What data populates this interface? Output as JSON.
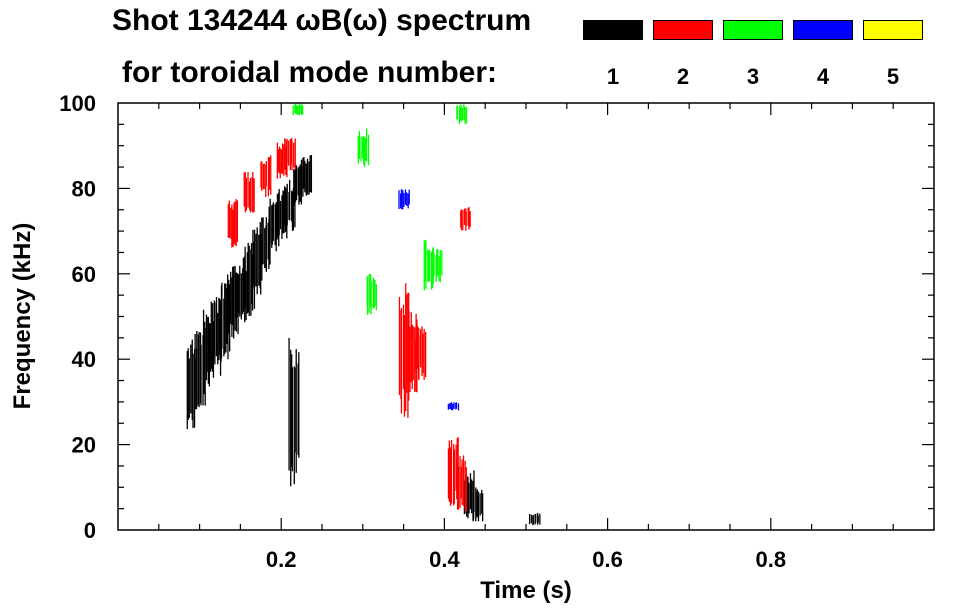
{
  "title_line1": "Shot 134244 ωB(ω) spectrum",
  "title_line2": "for toroidal mode number:",
  "legend": [
    {
      "label": "1",
      "color": "#000000"
    },
    {
      "label": "2",
      "color": "#ff0000"
    },
    {
      "label": "3",
      "color": "#00ff00"
    },
    {
      "label": "4",
      "color": "#0000ff"
    },
    {
      "label": "5",
      "color": "#ffff00"
    }
  ],
  "chart_data": {
    "type": "heatmap",
    "title": "Shot 134244 ωB(ω) spectrum",
    "xlabel": "Time (s)",
    "ylabel": "Frequency (kHz)",
    "xlim": [
      0.0,
      1.0
    ],
    "ylim": [
      0,
      100
    ],
    "xticks": [
      "0.2",
      "0.4",
      "0.6",
      "0.8"
    ],
    "xtick_values": [
      0.2,
      0.4,
      0.6,
      0.8
    ],
    "yticks": [
      "0",
      "20",
      "40",
      "60",
      "80",
      "100"
    ],
    "ytick_values": [
      0,
      20,
      40,
      60,
      80,
      100
    ],
    "series": [
      {
        "name": "1",
        "color": "#000000",
        "regions": [
          {
            "t": 0.09,
            "f": [
              23,
              45
            ]
          },
          {
            "t": 0.1,
            "f": [
              28,
              48
            ]
          },
          {
            "t": 0.11,
            "f": [
              33,
              52
            ]
          },
          {
            "t": 0.12,
            "f": [
              36,
              55
            ]
          },
          {
            "t": 0.13,
            "f": [
              40,
              58
            ]
          },
          {
            "t": 0.14,
            "f": [
              44,
              62
            ]
          },
          {
            "t": 0.15,
            "f": [
              47,
              64
            ]
          },
          {
            "t": 0.16,
            "f": [
              50,
              68
            ]
          },
          {
            "t": 0.17,
            "f": [
              55,
              71
            ]
          },
          {
            "t": 0.18,
            "f": [
              60,
              74
            ]
          },
          {
            "t": 0.19,
            "f": [
              65,
              78
            ]
          },
          {
            "t": 0.2,
            "f": [
              68,
              80
            ]
          },
          {
            "t": 0.21,
            "f": [
              70,
              82
            ]
          },
          {
            "t": 0.22,
            "f": [
              76,
              86
            ]
          },
          {
            "t": 0.23,
            "f": [
              78,
              88
            ]
          },
          {
            "t": 0.215,
            "f": [
              10,
              45
            ]
          },
          {
            "t": 0.43,
            "f": [
              2,
              14
            ]
          },
          {
            "t": 0.44,
            "f": [
              2,
              10
            ]
          },
          {
            "t": 0.51,
            "f": [
              1,
              4
            ]
          }
        ]
      },
      {
        "name": "2",
        "color": "#ff0000",
        "regions": [
          {
            "t": 0.14,
            "f": [
              66,
              78
            ]
          },
          {
            "t": 0.16,
            "f": [
              74,
              84
            ]
          },
          {
            "t": 0.18,
            "f": [
              78,
              88
            ]
          },
          {
            "t": 0.2,
            "f": [
              82,
              91
            ]
          },
          {
            "t": 0.21,
            "f": [
              84,
              92
            ]
          },
          {
            "t": 0.35,
            "f": [
              25,
              58
            ]
          },
          {
            "t": 0.36,
            "f": [
              30,
              52
            ]
          },
          {
            "t": 0.37,
            "f": [
              35,
              48
            ]
          },
          {
            "t": 0.41,
            "f": [
              5,
              22
            ]
          },
          {
            "t": 0.42,
            "f": [
              4,
              18
            ]
          },
          {
            "t": 0.425,
            "f": [
              70,
              76
            ]
          }
        ]
      },
      {
        "name": "3",
        "color": "#00ff00",
        "regions": [
          {
            "t": 0.3,
            "f": [
              85,
              94
            ]
          },
          {
            "t": 0.31,
            "f": [
              50,
              60
            ]
          },
          {
            "t": 0.38,
            "f": [
              56,
              68
            ]
          },
          {
            "t": 0.39,
            "f": [
              58,
              66
            ]
          },
          {
            "t": 0.42,
            "f": [
              95,
              100
            ]
          },
          {
            "t": 0.22,
            "f": [
              97,
              100
            ]
          }
        ]
      },
      {
        "name": "4",
        "color": "#0000ff",
        "regions": [
          {
            "t": 0.35,
            "f": [
              75,
              80
            ]
          },
          {
            "t": 0.41,
            "f": [
              28,
              30
            ]
          }
        ]
      },
      {
        "name": "5",
        "color": "#ffff00",
        "regions": []
      }
    ]
  }
}
